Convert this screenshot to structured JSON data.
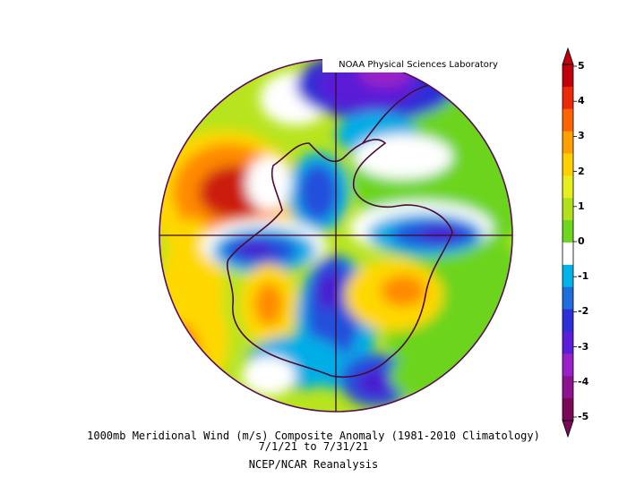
{
  "credit": "NOAA Physical Sciences Laboratory",
  "caption": {
    "line1": "1000mb Meridional Wind (m/s) Composite Anomaly (1981-2010 Climatology)",
    "line2": "7/1/21  to 7/31/21",
    "line3": "NCEP/NCAR Reanalysis"
  },
  "colorbar": {
    "ticks": [
      "5",
      "4",
      "3",
      "2",
      "1",
      "0",
      "-1",
      "-2",
      "-3",
      "-4",
      "-5"
    ],
    "colors": [
      "#7a0a58",
      "#8c1491",
      "#9a20c8",
      "#5a1fd6",
      "#2f2fd6",
      "#1e6fdc",
      "#00b2e6",
      "#ffffff",
      "#6ed61e",
      "#b0e01e",
      "#e6ee1e",
      "#ffd000",
      "#ffa000",
      "#ff6400",
      "#ec2a0a",
      "#c0000a"
    ]
  },
  "map": {
    "projection": "south-polar-stereographic",
    "region": "Antarctica and Southern Ocean",
    "colors": {
      "strong-positive": "#cc1a08",
      "positive-orange": "#ff8a00",
      "positive-yellow": "#ffd800",
      "weak-positive": "#b7e41e",
      "green": "#6cd41e",
      "neutral": "#ffffff",
      "weak-negative": "#00aee6",
      "negative": "#2050dc",
      "strong-negative": "#4a1fd0",
      "very-negative": "#8a1fc4",
      "coast": "#4a0a3a",
      "frame": "#5a0b55"
    }
  }
}
